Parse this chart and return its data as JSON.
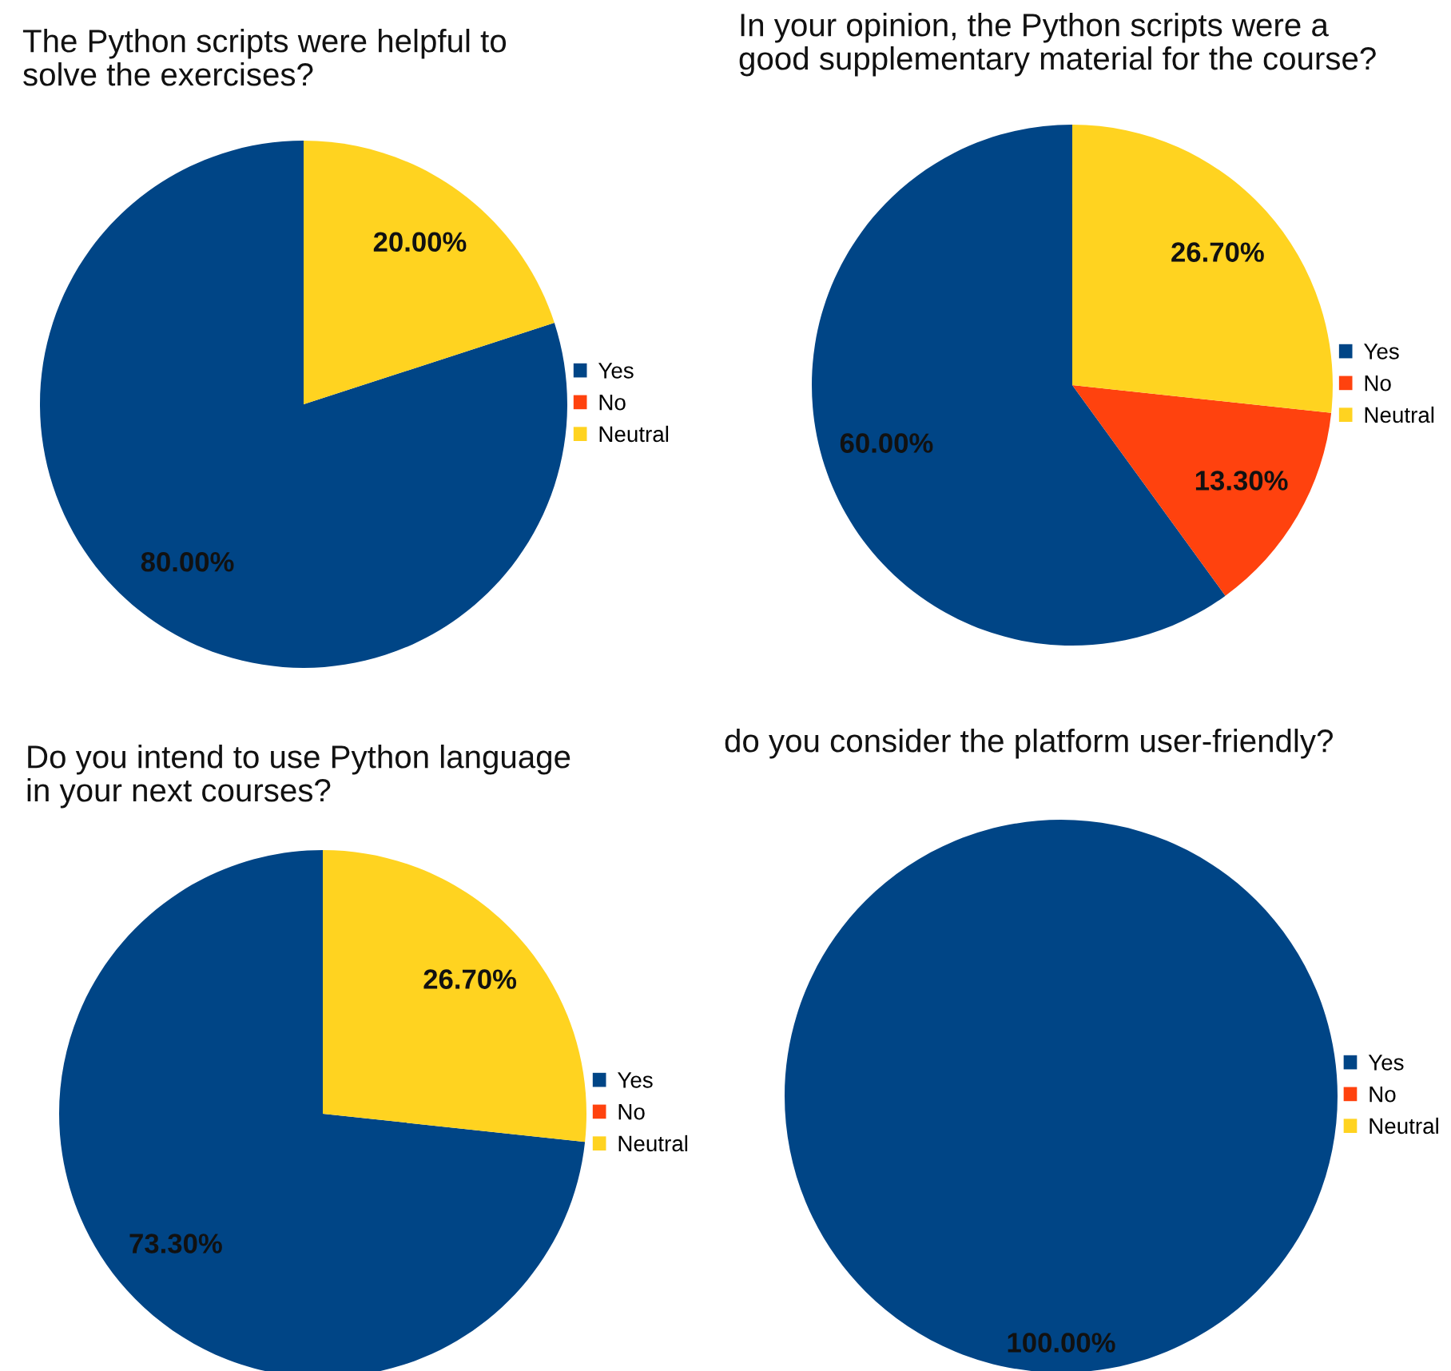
{
  "chart_data": [
    {
      "type": "pie",
      "title": "The Python scripts were helpful to\nsolve the exercises?",
      "categories": [
        "Yes",
        "No",
        "Neutral"
      ],
      "values": [
        80,
        0,
        20
      ],
      "colors": [
        "#004586",
        "#ff420e",
        "#ffd320"
      ],
      "value_labels": [
        "80.00%",
        null,
        "20.00%"
      ],
      "legend": "right"
    },
    {
      "type": "pie",
      "title": "In your opinion, the Python scripts were a\ngood supplementary material for the course?",
      "categories": [
        "Yes",
        "No",
        "Neutral"
      ],
      "values": [
        60,
        13.3,
        26.7
      ],
      "colors": [
        "#004586",
        "#ff420e",
        "#ffd320"
      ],
      "value_labels": [
        "60.00%",
        "13.30%",
        "26.70%"
      ],
      "legend": "right"
    },
    {
      "type": "pie",
      "title": "Do you intend to use Python language\nin your next courses?",
      "categories": [
        "Yes",
        "No",
        "Neutral"
      ],
      "values": [
        73.3,
        0,
        26.7
      ],
      "colors": [
        "#004586",
        "#ff420e",
        "#ffd320"
      ],
      "value_labels": [
        "73.30%",
        null,
        "26.70%"
      ],
      "legend": "right"
    },
    {
      "type": "pie",
      "title": "do you consider the platform user-friendly?",
      "categories": [
        "Yes",
        "No",
        "Neutral"
      ],
      "values": [
        100,
        0,
        0
      ],
      "colors": [
        "#004586",
        "#ff420e",
        "#ffd320"
      ],
      "value_labels": [
        "100.00%",
        null,
        null
      ],
      "legend": "right"
    }
  ]
}
